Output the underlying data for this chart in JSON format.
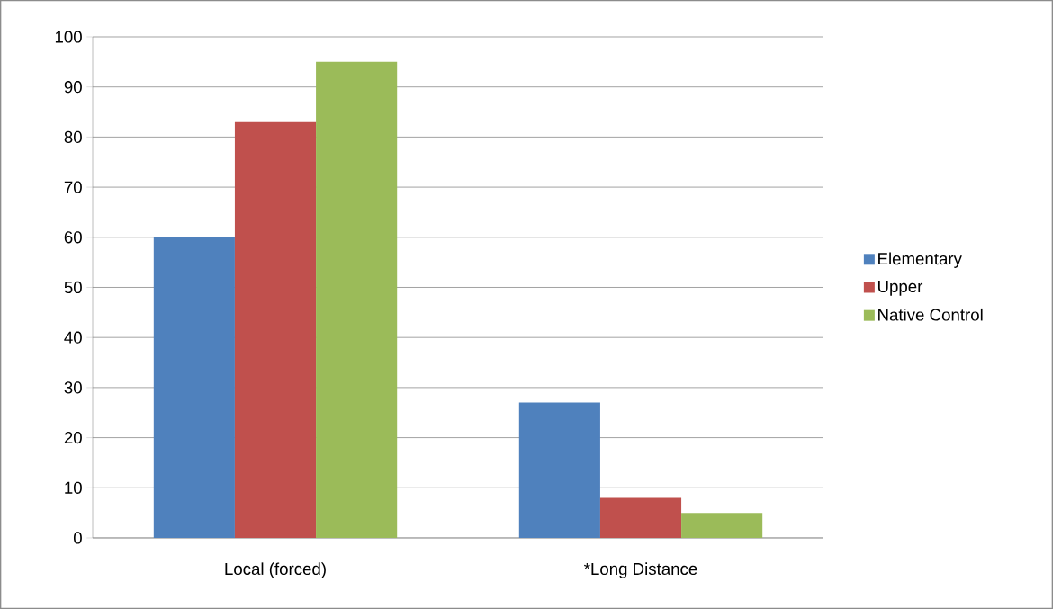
{
  "chart_data": {
    "type": "bar",
    "categories": [
      "Local (forced)",
      "*Long Distance"
    ],
    "series": [
      {
        "name": "Elementary",
        "color": "#4f81bd",
        "values": [
          60,
          27
        ]
      },
      {
        "name": "Upper",
        "color": "#c0504d",
        "values": [
          83,
          8
        ]
      },
      {
        "name": "Native Control",
        "color": "#9bbb59",
        "values": [
          95,
          5
        ]
      }
    ],
    "ylim": [
      0,
      100
    ],
    "yticks": [
      0,
      10,
      20,
      30,
      40,
      50,
      60,
      70,
      80,
      90,
      100
    ],
    "grid": "y",
    "legend": "right"
  }
}
